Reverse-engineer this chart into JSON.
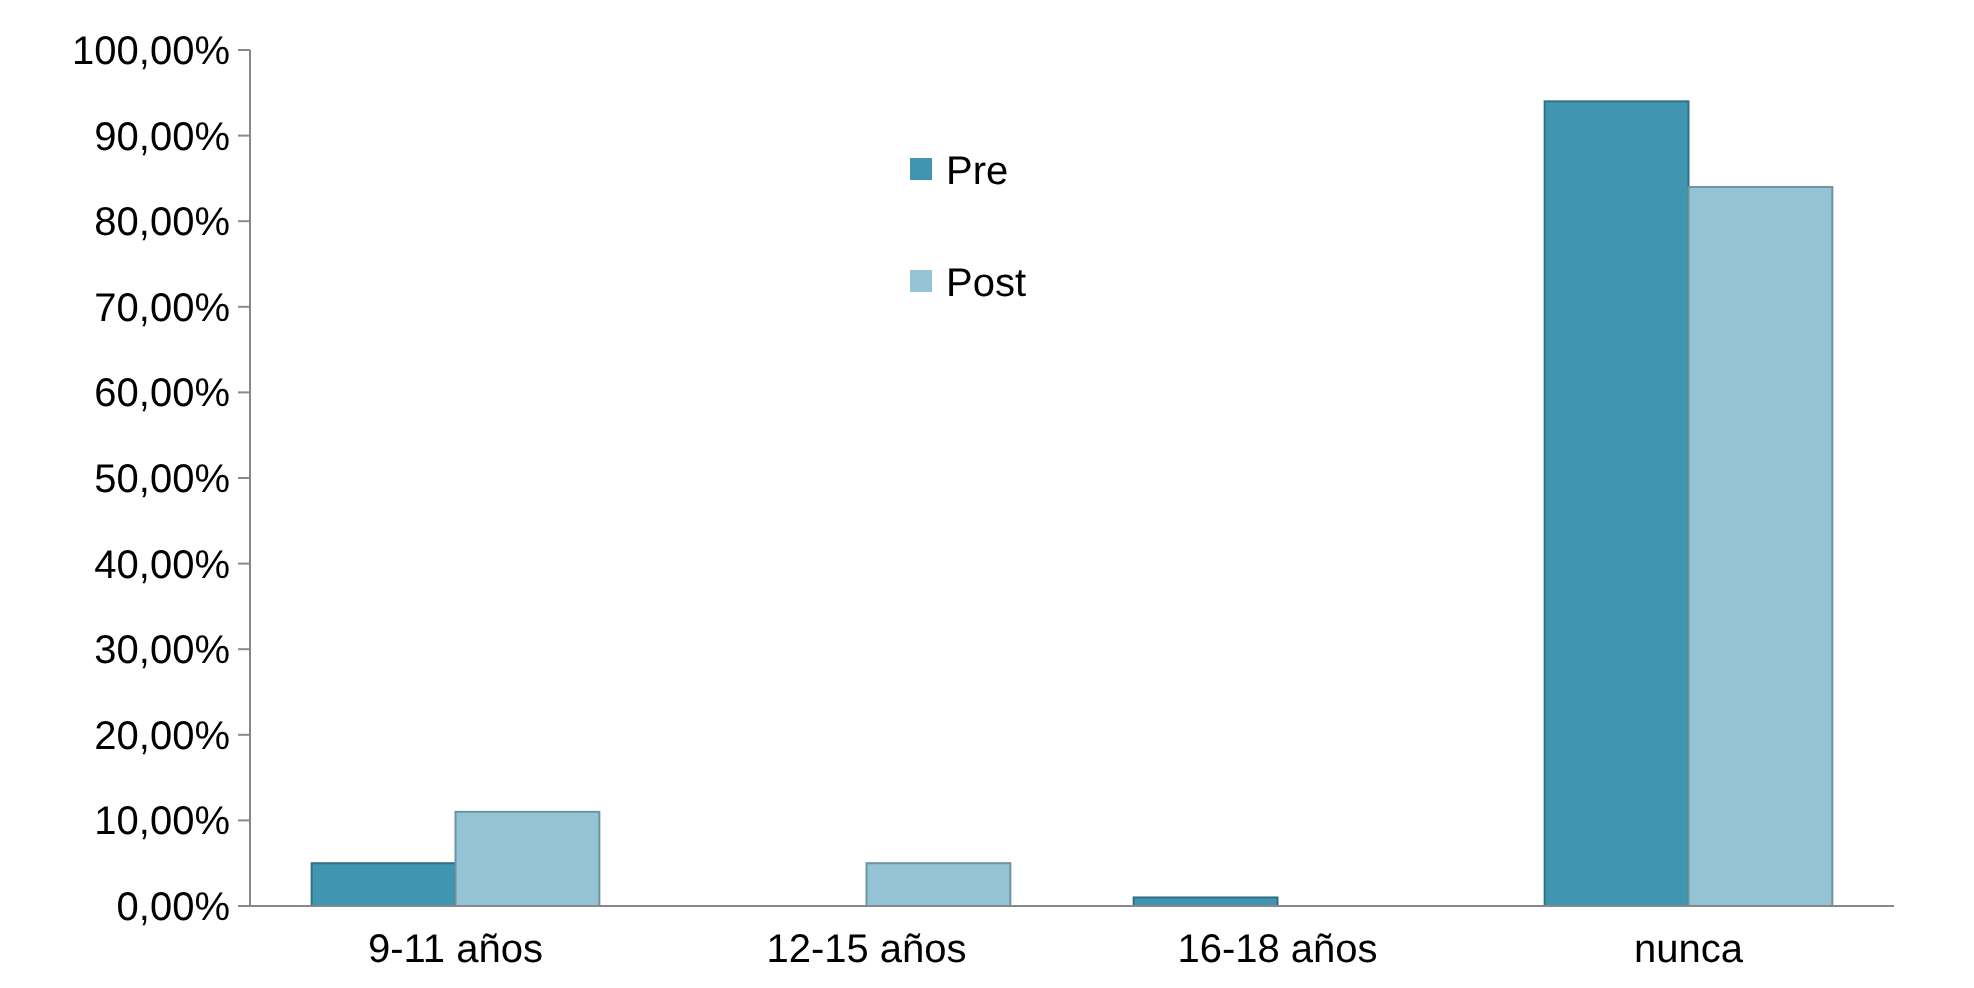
{
  "chart_data": {
    "type": "bar",
    "categories": [
      "9-11 años",
      "12-15 años",
      "16-18 años",
      "nunca"
    ],
    "series": [
      {
        "name": "Pre",
        "color": "#4096b0",
        "values": [
          5,
          0,
          1,
          94
        ]
      },
      {
        "name": "Post",
        "color": "#93c3d5",
        "values": [
          11,
          5,
          0,
          84
        ]
      }
    ],
    "ylim": [
      0,
      100
    ],
    "yticks": [
      {
        "value": 0,
        "label": "0,00%"
      },
      {
        "value": 10,
        "label": "10,00%"
      },
      {
        "value": 20,
        "label": "20,00%"
      },
      {
        "value": 30,
        "label": "30,00%"
      },
      {
        "value": 40,
        "label": "40,00%"
      },
      {
        "value": 50,
        "label": "50,00%"
      },
      {
        "value": 60,
        "label": "60,00%"
      },
      {
        "value": 70,
        "label": "70,00%"
      },
      {
        "value": 80,
        "label": "80,00%"
      },
      {
        "value": 90,
        "label": "90,00%"
      },
      {
        "value": 100,
        "label": "100,00%"
      }
    ],
    "legend": "top",
    "grid": false
  }
}
